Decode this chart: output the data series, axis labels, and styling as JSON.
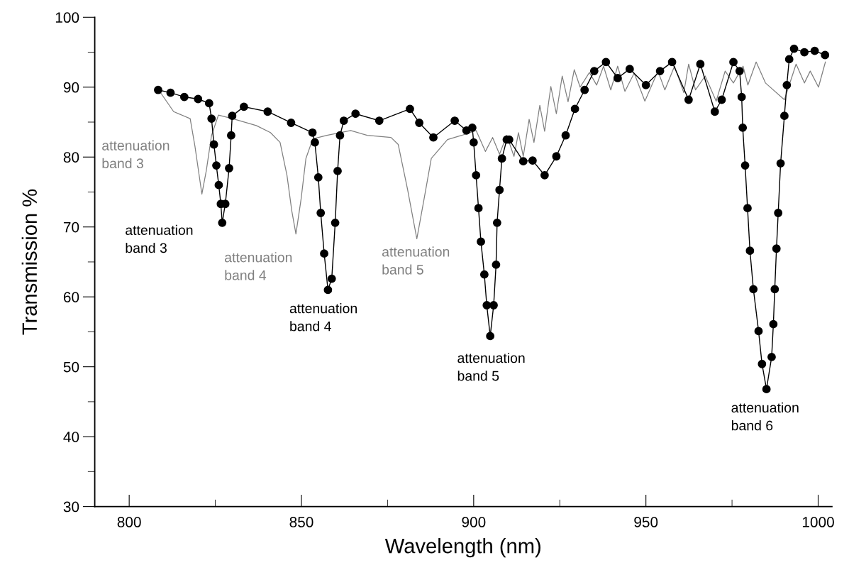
{
  "chart_data": {
    "type": "line",
    "xlabel": "Wavelength (nm)",
    "ylabel": "Transmission %",
    "xlim": [
      790,
      1004
    ],
    "ylim": [
      30,
      100
    ],
    "xticks": [
      800,
      {
        "value": 825,
        "label": null
      },
      850,
      {
        "value": 875,
        "label": null
      },
      900,
      {
        "value": 925,
        "label": null
      },
      950,
      {
        "value": 975,
        "label": null
      },
      1000
    ],
    "yticks": [
      30,
      {
        "value": 35,
        "label": null
      },
      40,
      {
        "value": 45,
        "label": null
      },
      50,
      {
        "value": 55,
        "label": null
      },
      60,
      {
        "value": 65,
        "label": null
      },
      70,
      {
        "value": 75,
        "label": null
      },
      80,
      {
        "value": 85,
        "label": null
      },
      90,
      {
        "value": 95,
        "label": null
      },
      100
    ],
    "grid": false,
    "series": [
      {
        "color": "#808080",
        "marker": "none",
        "line_style": "solid",
        "x": [
          808,
          812.9,
          817.7,
          819.1,
          821.1,
          822.4,
          823.9,
          825.9,
          830,
          836.9,
          841,
          843.8,
          845.8,
          847.2,
          848.4,
          849.9,
          851.3,
          853.3,
          857.4,
          864.3,
          869.1,
          876,
          878.1,
          880.8,
          883.5,
          885.6,
          887.7,
          892.4,
          896.5,
          900.7,
          903.4,
          905.5,
          907.5,
          909.6,
          911.7,
          913,
          914.4,
          916.1,
          917.5,
          919.2,
          920.6,
          922.4,
          924,
          925.7,
          927.4,
          929.2,
          930.9,
          933.6,
          935.7,
          937.7,
          939.8,
          941.8,
          943.9,
          946.6,
          949.7,
          953.5,
          955.5,
          958.3,
          961,
          962.4,
          964.4,
          967.2,
          970.4,
          973,
          975.4,
          978.2,
          979.6,
          982,
          984.7,
          990.2,
          993.6,
          996,
          997.7,
          1000.1,
          1002.1
        ],
        "values": [
          90,
          86.5,
          85.5,
          81.5,
          74.7,
          78.1,
          83.1,
          86,
          85.5,
          84.5,
          83.5,
          82.1,
          77.4,
          72.3,
          69,
          74,
          79.8,
          82.6,
          83.1,
          83.8,
          83.1,
          82.8,
          81.8,
          75.4,
          68.3,
          74,
          79.8,
          82.5,
          83.1,
          83.8,
          80.8,
          82.8,
          80.4,
          83.1,
          80.1,
          83.5,
          80.1,
          85.4,
          82.1,
          87.4,
          83.7,
          90.1,
          86.2,
          91.6,
          87.9,
          92.5,
          90,
          92.1,
          90.3,
          93,
          89.6,
          93,
          89.4,
          92,
          88,
          92.3,
          89.6,
          93,
          89.2,
          93.3,
          89.6,
          91.6,
          88,
          92.3,
          90.6,
          93,
          90.3,
          93.6,
          90.6,
          88.2,
          93.3,
          90.6,
          92.3,
          90,
          93.6
        ]
      },
      {
        "color": "#000000",
        "marker": "circle",
        "line_style": "solid",
        "x": [
          808.4,
          812,
          816,
          820,
          823.2,
          823.9,
          824.6,
          825.3,
          826,
          826.6,
          827,
          827.9,
          829,
          829.6,
          829.9,
          833.3,
          840.2,
          847,
          853.2,
          853.9,
          854.9,
          855.6,
          856.6,
          857.7,
          858.8,
          859.8,
          860.5,
          861.2,
          862.3,
          865.7,
          872.6,
          881.5,
          884.2,
          888.3,
          894.5,
          897.9,
          899.6,
          900,
          900.7,
          901.4,
          902.1,
          903.1,
          903.8,
          904.8,
          905.8,
          906.5,
          906.8,
          907.5,
          908.2,
          909.6,
          910.3,
          914.4,
          917.1,
          920.6,
          924,
          926.7,
          929.4,
          932.2,
          935,
          938.4,
          941.8,
          945.3,
          950,
          954.1,
          957.6,
          962.4,
          965.8,
          970,
          972,
          975.4,
          977.2,
          977.8,
          978.1,
          978.8,
          979.5,
          980.2,
          981.2,
          982.7,
          983.7,
          985,
          986.5,
          987,
          987.4,
          987.9,
          988.4,
          989.1,
          990.2,
          990.9,
          991.6,
          993,
          996,
          999,
          1002
        ],
        "values": [
          89.6,
          89.2,
          88.6,
          88.3,
          87.7,
          85.5,
          81.8,
          78.8,
          76,
          73.3,
          70.6,
          73.3,
          78.4,
          83.1,
          85.9,
          87.2,
          86.5,
          84.9,
          83.5,
          82.1,
          77.1,
          72,
          66.2,
          61,
          62.6,
          70.6,
          78,
          83.1,
          85.2,
          86.2,
          85.2,
          86.9,
          84.9,
          82.8,
          85.2,
          83.8,
          84.2,
          82.1,
          77.4,
          72.7,
          67.9,
          63.2,
          58.8,
          54.4,
          58.8,
          64.6,
          70.6,
          75.3,
          79.8,
          82.5,
          82.5,
          79.4,
          79.5,
          77.4,
          80.1,
          83.1,
          86.9,
          89.6,
          92.3,
          93.6,
          91.3,
          92.6,
          90.3,
          92.3,
          93.6,
          88.2,
          93.3,
          86.5,
          88.2,
          93.6,
          92.3,
          88.6,
          84.2,
          78.8,
          72.7,
          66.6,
          61.1,
          55.1,
          50.4,
          46.8,
          51.4,
          56.1,
          61.1,
          66.9,
          72,
          79.1,
          85.9,
          90.3,
          94,
          95.5,
          95,
          95.2,
          94.6
        ]
      }
    ],
    "annotations": [
      {
        "text": "attenuation\nband 3",
        "x": 819.1,
        "y": 81.5
      },
      {
        "text": "attenuation\nband 3",
        "x": 827,
        "y": 70.6
      },
      {
        "text": "attenuation\nband 4",
        "x": 848.4,
        "y": 69
      },
      {
        "text": "attenuation\nband 4",
        "x": 857.7,
        "y": 61
      },
      {
        "text": "attenuation\nband 5",
        "x": 883.5,
        "y": 68.3
      },
      {
        "text": "attenuation\nband 5",
        "x": 904.8,
        "y": 54.4
      },
      {
        "text": "attenuation\nband 6",
        "x": 985,
        "y": 46.8
      }
    ]
  }
}
